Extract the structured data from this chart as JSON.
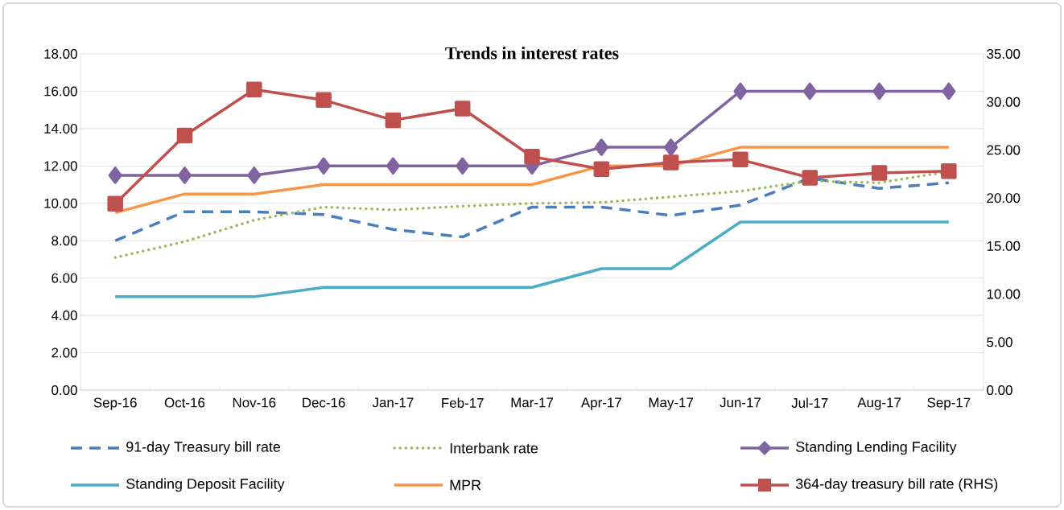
{
  "chart_data": {
    "type": "line",
    "title": "Trends in interest rates",
    "categories": [
      "Sep-16",
      "Oct-16",
      "Nov-16",
      "Dec-16",
      "Jan-17",
      "Feb-17",
      "Mar-17",
      "Apr-17",
      "May-17",
      "Jun-17",
      "Jul-17",
      "Aug-17",
      "Sep-17"
    ],
    "series": [
      {
        "name": "91-day Treasury bill rate",
        "color": "#4a7ebb",
        "line_style": "dashed",
        "marker": "none",
        "values": [
          8.0,
          9.55,
          9.55,
          9.4,
          8.6,
          8.2,
          9.8,
          9.8,
          9.35,
          9.9,
          11.35,
          10.8,
          11.1
        ]
      },
      {
        "name": "Interbank rate",
        "color": "#9bbb59",
        "line_style": "dotted",
        "marker": "none",
        "values": [
          7.1,
          7.95,
          9.1,
          9.8,
          9.65,
          9.85,
          10.0,
          10.05,
          10.35,
          10.65,
          11.2,
          11.1,
          11.7
        ]
      },
      {
        "name": "Standing Lending Facility",
        "color": "#8064a2",
        "line_style": "solid",
        "marker": "diamond",
        "values": [
          11.5,
          11.5,
          11.5,
          12,
          12,
          12,
          12,
          13,
          13,
          16,
          16,
          16,
          16
        ]
      },
      {
        "name": "Standing Deposit Facility",
        "color": "#4bacc6",
        "line_style": "solid",
        "marker": "none",
        "values": [
          5,
          5,
          5,
          5.5,
          5.5,
          5.5,
          5.5,
          6.5,
          6.5,
          9,
          9,
          9,
          9
        ]
      },
      {
        "name": "MPR",
        "color": "#f79646",
        "line_style": "solid",
        "marker": "none",
        "values": [
          9.5,
          10.5,
          10.5,
          11,
          11,
          11,
          11,
          12,
          12,
          13,
          13,
          13,
          13
        ]
      },
      {
        "name": "364-day treasury bill rate (RHS)",
        "color": "#c0504d",
        "line_style": "solid",
        "marker": "square",
        "axis": "y2",
        "values": [
          19.4,
          26.5,
          31.3,
          30.2,
          28.1,
          29.3,
          24.3,
          23.0,
          23.7,
          24.0,
          22.1,
          22.6,
          22.8
        ]
      }
    ],
    "ylim": [
      0,
      18
    ],
    "yticks": [
      {
        "value": 0,
        "label": "0.00"
      },
      {
        "value": 2,
        "label": "2.00"
      },
      {
        "value": 4,
        "label": "4.00"
      },
      {
        "value": 6,
        "label": "6.00"
      },
      {
        "value": 8,
        "label": "8.00"
      },
      {
        "value": 10,
        "label": "10.00"
      },
      {
        "value": 12,
        "label": "12.00"
      },
      {
        "value": 14,
        "label": "14.00"
      },
      {
        "value": 16,
        "label": "16.00"
      },
      {
        "value": 18,
        "label": "18.00"
      }
    ],
    "y2lim": [
      0,
      35
    ],
    "y2ticks": [
      {
        "value": 0,
        "label": "0.00"
      },
      {
        "value": 5,
        "label": "5.00"
      },
      {
        "value": 10,
        "label": "10.00"
      },
      {
        "value": 15,
        "label": "15.00"
      },
      {
        "value": 20,
        "label": "20.00"
      },
      {
        "value": 25,
        "label": "25.00"
      },
      {
        "value": 30,
        "label": "30.00"
      },
      {
        "value": 35,
        "label": "35.00"
      }
    ],
    "grid": "y",
    "legend": "bottom"
  }
}
